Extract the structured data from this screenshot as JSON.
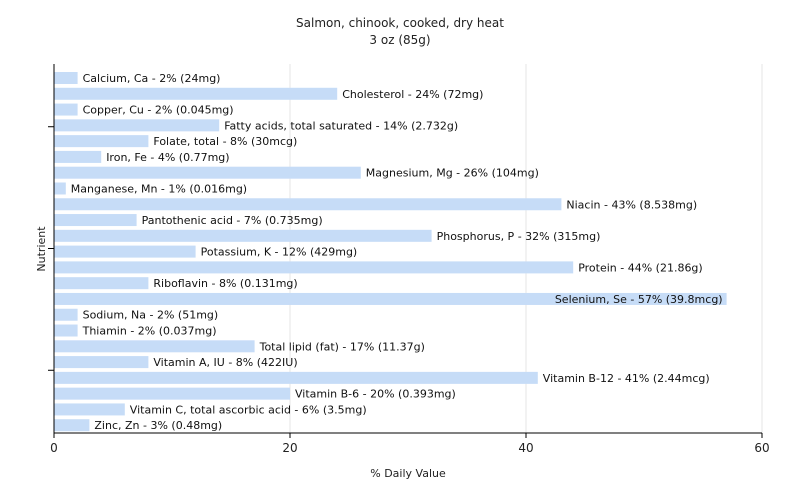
{
  "chart_data": {
    "type": "bar",
    "orientation": "horizontal",
    "title": "Salmon, chinook, cooked, dry heat",
    "subtitle": "3 oz (85g)",
    "xlabel": "% Daily Value",
    "ylabel": "Nutrient",
    "xlim": [
      0,
      60
    ],
    "xticks": [
      0,
      20,
      40,
      60
    ],
    "grid": true,
    "colors": {
      "bar": "#c6dcf7"
    },
    "bars": [
      {
        "value": 2,
        "label": "Calcium, Ca - 2% (24mg)"
      },
      {
        "value": 24,
        "label": "Cholesterol - 24% (72mg)"
      },
      {
        "value": 2,
        "label": "Copper, Cu - 2% (0.045mg)"
      },
      {
        "value": 14,
        "label": "Fatty acids, total saturated - 14% (2.732g)"
      },
      {
        "value": 8,
        "label": "Folate, total - 8% (30mcg)"
      },
      {
        "value": 4,
        "label": "Iron, Fe - 4% (0.77mg)"
      },
      {
        "value": 26,
        "label": "Magnesium, Mg - 26% (104mg)"
      },
      {
        "value": 1,
        "label": "Manganese, Mn - 1% (0.016mg)"
      },
      {
        "value": 43,
        "label": "Niacin - 43% (8.538mg)"
      },
      {
        "value": 7,
        "label": "Pantothenic acid - 7% (0.735mg)"
      },
      {
        "value": 32,
        "label": "Phosphorus, P - 32% (315mg)"
      },
      {
        "value": 12,
        "label": "Potassium, K - 12% (429mg)"
      },
      {
        "value": 44,
        "label": "Protein - 44% (21.86g)"
      },
      {
        "value": 8,
        "label": "Riboflavin - 8% (0.131mg)"
      },
      {
        "value": 57,
        "label": "Selenium, Se - 57% (39.8mcg)"
      },
      {
        "value": 2,
        "label": "Sodium, Na - 2% (51mg)"
      },
      {
        "value": 2,
        "label": "Thiamin - 2% (0.037mg)"
      },
      {
        "value": 17,
        "label": "Total lipid (fat) - 17% (11.37g)"
      },
      {
        "value": 8,
        "label": "Vitamin A, IU - 8% (422IU)"
      },
      {
        "value": 41,
        "label": "Vitamin B-12 - 41% (2.44mcg)"
      },
      {
        "value": 20,
        "label": "Vitamin B-6 - 20% (0.393mg)"
      },
      {
        "value": 6,
        "label": "Vitamin C, total ascorbic acid - 6% (3.5mg)"
      },
      {
        "value": 3,
        "label": "Zinc, Zn - 3% (0.48mg)"
      }
    ]
  }
}
